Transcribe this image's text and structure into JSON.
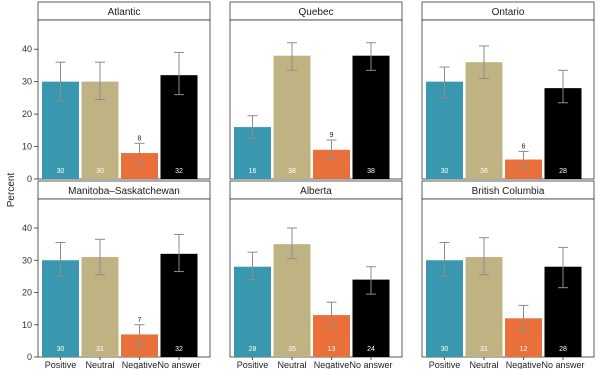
{
  "chart_data": {
    "type": "bar",
    "ylabel": "Percent",
    "ylim": [
      0,
      49
    ],
    "yticks": [
      0,
      10,
      20,
      30,
      40
    ],
    "grid": false,
    "categories": [
      "Positive",
      "Neutral",
      "Negative",
      "No answer"
    ],
    "colors": [
      "#3a97b0",
      "#bfb384",
      "#e9703b",
      "#000000"
    ],
    "error_bar_color": "#8c8c8c",
    "panels": [
      {
        "title": "Atlantic",
        "values": [
          30,
          30,
          8,
          32
        ],
        "value_labels": [
          "30",
          "30",
          "8",
          "32"
        ],
        "errors_low": [
          24,
          24.5,
          4.5,
          26
        ],
        "errors_high": [
          36,
          36,
          11,
          39
        ]
      },
      {
        "title": "Quebec",
        "values": [
          16,
          38,
          9,
          38
        ],
        "value_labels": [
          "16",
          "38",
          "9",
          "38"
        ],
        "errors_low": [
          12.5,
          33.5,
          6,
          33.5
        ],
        "errors_high": [
          19.5,
          42,
          12,
          42
        ]
      },
      {
        "title": "Ontario",
        "values": [
          30,
          36,
          6,
          28
        ],
        "value_labels": [
          "30",
          "36",
          "6",
          "28"
        ],
        "errors_low": [
          25,
          31,
          3.5,
          23.5
        ],
        "errors_high": [
          34.5,
          41,
          8.5,
          33.5
        ]
      },
      {
        "title": "Manitoba–Saskatchewan",
        "values": [
          30,
          31,
          7,
          32
        ],
        "value_labels": [
          "30",
          "31",
          "7",
          "32"
        ],
        "errors_low": [
          25,
          25.5,
          3.5,
          26.5
        ],
        "errors_high": [
          35.5,
          36.5,
          10,
          38
        ]
      },
      {
        "title": "Alberta",
        "values": [
          28,
          35,
          13,
          24
        ],
        "value_labels": [
          "28",
          "35",
          "13",
          "24"
        ],
        "errors_low": [
          24,
          30.5,
          9.5,
          19.5
        ],
        "errors_high": [
          32.5,
          40,
          17,
          28
        ]
      },
      {
        "title": "British Columbia",
        "values": [
          30,
          31,
          12,
          28
        ],
        "value_labels": [
          "30",
          "31",
          "12",
          "28"
        ],
        "errors_low": [
          25,
          25.5,
          8,
          21.5
        ],
        "errors_high": [
          35.5,
          37,
          16,
          34
        ]
      }
    ]
  }
}
